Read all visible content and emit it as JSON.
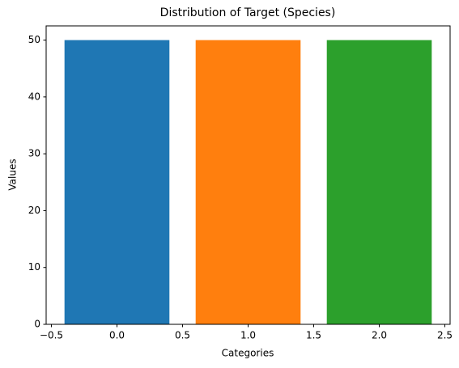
{
  "chart_data": {
    "type": "bar",
    "title": "Distribution of Target (Species)",
    "x_label": "Categories",
    "y_label": "Values",
    "x": [
      0,
      1,
      2
    ],
    "values": [
      50,
      50,
      50
    ],
    "colors": [
      "#1f77b4",
      "#ff7f0e",
      "#2ca02c"
    ],
    "xlim": [
      -0.54,
      2.54
    ],
    "xticks": [
      {
        "value": -0.5,
        "label": "−0.5"
      },
      {
        "value": 0,
        "label": "0.0"
      },
      {
        "value": 0.5,
        "label": "0.5"
      },
      {
        "value": 1,
        "label": "1.0"
      },
      {
        "value": 1.5,
        "label": "1.5"
      },
      {
        "value": 2,
        "label": "2.0"
      },
      {
        "value": 2.5,
        "label": "2.5"
      }
    ],
    "ylim": [
      0,
      52.5
    ],
    "yticks": [
      0,
      10,
      20,
      30,
      40,
      50
    ],
    "grid": false
  }
}
